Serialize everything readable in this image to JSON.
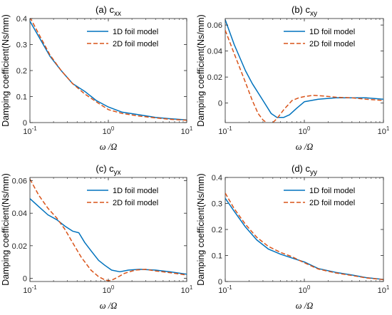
{
  "chart_data": [
    {
      "type": "line",
      "title": "(a) c_xx",
      "title_main": "(a) c",
      "title_sub": "xx",
      "ylabel": "Damping coefficient(Ns/mm)",
      "xlabel": "ω /Ω",
      "xscale": "log",
      "xlim": [
        0.1,
        10
      ],
      "ylim": [
        0,
        0.4
      ],
      "xticks": [
        0.1,
        1,
        10
      ],
      "xticklabels": [
        "10^-1",
        "10^0",
        "10^1"
      ],
      "yticks": [
        0,
        0.1,
        0.2,
        0.3,
        0.4
      ],
      "yticklabels": [
        "0",
        "0.1",
        "0.2",
        "0.3",
        "0.4"
      ],
      "legend_position": "top-right",
      "series": [
        {
          "name": "1D foil model",
          "color": "#0072BD",
          "style": "solid",
          "x": [
            0.1,
            0.13,
            0.18,
            0.25,
            0.35,
            0.5,
            0.7,
            1,
            1.5,
            2.5,
            4,
            6,
            10
          ],
          "y": [
            0.39,
            0.33,
            0.255,
            0.2,
            0.15,
            0.12,
            0.085,
            0.06,
            0.04,
            0.03,
            0.02,
            0.015,
            0.01
          ]
        },
        {
          "name": "2D foil model",
          "color": "#D95319",
          "style": "dashed",
          "x": [
            0.1,
            0.13,
            0.18,
            0.25,
            0.35,
            0.5,
            0.7,
            1,
            1.5,
            2.5,
            4,
            6,
            10
          ],
          "y": [
            0.405,
            0.34,
            0.26,
            0.2,
            0.15,
            0.11,
            0.08,
            0.05,
            0.035,
            0.025,
            0.018,
            0.013,
            0.009
          ]
        }
      ]
    },
    {
      "type": "line",
      "title": "(b) c_xy",
      "title_main": "(b) c",
      "title_sub": "xy",
      "ylabel": "Damping coefficient(Ns/mm)",
      "xlabel": "ω /Ω",
      "xscale": "log",
      "xlim": [
        0.1,
        10
      ],
      "ylim": [
        -0.015,
        0.065
      ],
      "xticks": [
        0.1,
        1,
        10
      ],
      "xticklabels": [
        "10^-1",
        "10^0",
        "10^1"
      ],
      "yticks": [
        0,
        0.02,
        0.04,
        0.06
      ],
      "yticklabels": [
        "0",
        "0.02",
        "0.04",
        "0.06"
      ],
      "legend_position": "top-right",
      "series": [
        {
          "name": "1D foil model",
          "color": "#0072BD",
          "style": "solid",
          "x": [
            0.1,
            0.13,
            0.18,
            0.22,
            0.3,
            0.38,
            0.45,
            0.55,
            0.65,
            0.8,
            1,
            1.5,
            2.5,
            4,
            6,
            10
          ],
          "y": [
            0.064,
            0.045,
            0.025,
            0.015,
            0.002,
            -0.008,
            -0.011,
            -0.011,
            -0.009,
            -0.004,
            0.001,
            0.003,
            0.004,
            0.004,
            0.004,
            0.003
          ]
        },
        {
          "name": "2D foil model",
          "color": "#D95319",
          "style": "dashed",
          "x": [
            0.1,
            0.13,
            0.18,
            0.22,
            0.26,
            0.3,
            0.35,
            0.4,
            0.45,
            0.55,
            0.7,
            0.85,
            1,
            1.3,
            1.7,
            2.5,
            4,
            6,
            10
          ],
          "y": [
            0.056,
            0.038,
            0.016,
            0.002,
            -0.008,
            -0.013,
            -0.016,
            -0.015,
            -0.012,
            -0.005,
            0.002,
            0.004,
            0.005,
            0.006,
            0.0055,
            0.0045,
            0.004,
            0.003,
            0.002
          ]
        }
      ]
    },
    {
      "type": "line",
      "title": "(c) c_yx",
      "title_main": "(c) c",
      "title_sub": "yx",
      "ylabel": "Damping coefficient(Ns/mm)",
      "xlabel": "ω /Ω",
      "xscale": "log",
      "xlim": [
        0.1,
        10
      ],
      "ylim": [
        -0.002,
        0.062
      ],
      "xticks": [
        0.1,
        1,
        10
      ],
      "xticklabels": [
        "10^-1",
        "10^0",
        "10^1"
      ],
      "yticks": [
        0,
        0.02,
        0.04,
        0.06
      ],
      "yticklabels": [
        "0",
        "0.02",
        "0.04",
        "0.06"
      ],
      "legend_position": "top-right",
      "series": [
        {
          "name": "1D foil model",
          "color": "#0072BD",
          "style": "solid",
          "x": [
            0.1,
            0.13,
            0.17,
            0.22,
            0.28,
            0.35,
            0.42,
            0.5,
            0.6,
            0.75,
            0.9,
            1.1,
            1.4,
            1.8,
            2.5,
            4,
            6,
            10
          ],
          "y": [
            0.049,
            0.044,
            0.039,
            0.036,
            0.032,
            0.029,
            0.028,
            0.022,
            0.017,
            0.011,
            0.008,
            0.005,
            0.004,
            0.005,
            0.0055,
            0.005,
            0.004,
            0.0025
          ]
        },
        {
          "name": "2D foil model",
          "color": "#D95319",
          "style": "dashed",
          "x": [
            0.1,
            0.13,
            0.17,
            0.22,
            0.28,
            0.35,
            0.45,
            0.6,
            0.75,
            0.9,
            1.0,
            1.1,
            1.3,
            1.6,
            2.2,
            3,
            4,
            6,
            10
          ],
          "y": [
            0.061,
            0.051,
            0.043,
            0.037,
            0.03,
            0.022,
            0.013,
            0.005,
            0.001,
            -0.001,
            -0.0015,
            -0.0012,
            0.0005,
            0.003,
            0.005,
            0.0055,
            0.0045,
            0.0035,
            0.002
          ]
        }
      ]
    },
    {
      "type": "line",
      "title": "(d) c_yy",
      "title_main": "(d) c",
      "title_sub": "yy",
      "ylabel": "Damping coefficient(Ns/mm)",
      "xlabel": "ω /Ω",
      "xscale": "log",
      "xlim": [
        0.1,
        10
      ],
      "ylim": [
        0,
        0.4
      ],
      "xticks": [
        0.1,
        1,
        10
      ],
      "xticklabels": [
        "10^-1",
        "10^0",
        "10^1"
      ],
      "yticks": [
        0,
        0.1,
        0.2,
        0.3,
        0.4
      ],
      "yticklabels": [
        "0",
        "0.1",
        "0.2",
        "0.3",
        "0.4"
      ],
      "legend_position": "top-right",
      "series": [
        {
          "name": "1D foil model",
          "color": "#0072BD",
          "style": "solid",
          "x": [
            0.1,
            0.13,
            0.18,
            0.25,
            0.35,
            0.5,
            0.7,
            1,
            1.5,
            2.5,
            4,
            6,
            10
          ],
          "y": [
            0.32,
            0.27,
            0.21,
            0.16,
            0.125,
            0.105,
            0.09,
            0.075,
            0.05,
            0.035,
            0.025,
            0.015,
            0.008
          ]
        },
        {
          "name": "2D foil model",
          "color": "#D95319",
          "style": "dashed",
          "x": [
            0.1,
            0.13,
            0.18,
            0.25,
            0.35,
            0.5,
            0.7,
            1,
            1.5,
            2.5,
            4,
            6,
            10
          ],
          "y": [
            0.34,
            0.28,
            0.22,
            0.17,
            0.135,
            0.112,
            0.095,
            0.072,
            0.048,
            0.033,
            0.023,
            0.014,
            0.007
          ]
        }
      ]
    }
  ]
}
